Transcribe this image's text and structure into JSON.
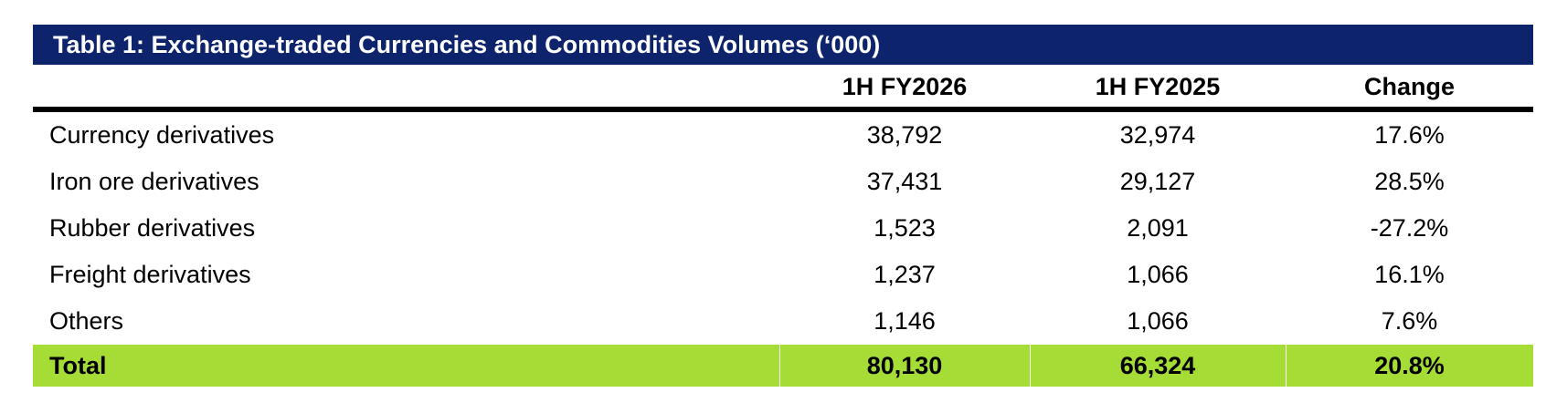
{
  "table": {
    "title": "Table 1: Exchange-traded Currencies and Commodities Volumes (‘000)",
    "columns": [
      "1H FY2026",
      "1H FY2025",
      "Change"
    ],
    "rows": [
      {
        "label": "Currency derivatives",
        "fy2026": "38,792",
        "fy2025": "32,974",
        "change": "17.6%"
      },
      {
        "label": "Iron ore derivatives",
        "fy2026": "37,431",
        "fy2025": "29,127",
        "change": "28.5%"
      },
      {
        "label": "Rubber derivatives",
        "fy2026": "1,523",
        "fy2025": "2,091",
        "change": "-27.2%"
      },
      {
        "label": "Freight derivatives",
        "fy2026": "1,237",
        "fy2025": "1,066",
        "change": "16.1%"
      },
      {
        "label": "Others",
        "fy2026": "1,146",
        "fy2025": "1,066",
        "change": "7.6%"
      }
    ],
    "total": {
      "label": "Total",
      "fy2026": "80,130",
      "fy2025": "66,324",
      "change": "20.8%"
    }
  },
  "colors": {
    "title_background": "#0d236b",
    "title_text": "#ffffff",
    "total_background": "#a5dc36",
    "header_rule": "#000000"
  }
}
